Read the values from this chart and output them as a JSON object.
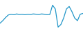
{
  "x": [
    0,
    1,
    2,
    3,
    4,
    5,
    6,
    7,
    8,
    9,
    10,
    11,
    12,
    13,
    14,
    15,
    16,
    17,
    18,
    19,
    20,
    21,
    22,
    23,
    24,
    25,
    26,
    27,
    28,
    29,
    30
  ],
  "y": [
    -3.0,
    -2.0,
    -0.8,
    0.2,
    0.5,
    0.3,
    0.6,
    0.4,
    0.5,
    0.3,
    0.5,
    0.4,
    0.6,
    0.5,
    0.4,
    0.6,
    0.5,
    0.3,
    0.4,
    4.0,
    2.5,
    -4.5,
    -3.5,
    -1.0,
    2.5,
    3.5,
    1.5,
    -1.0,
    -2.0,
    0.5,
    0.8
  ],
  "line_color": "#2196c8",
  "linewidth": 0.9,
  "background_color": "#ffffff",
  "ylim": [
    -6.0,
    6.0
  ]
}
